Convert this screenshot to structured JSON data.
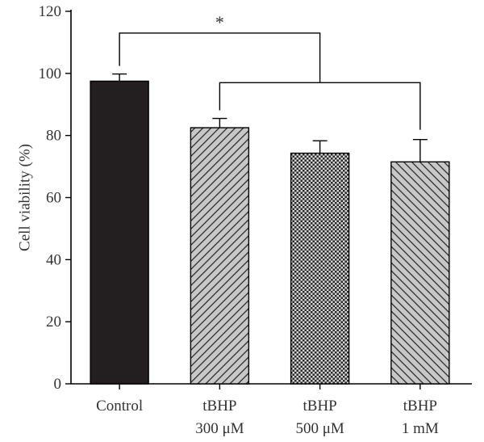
{
  "chart_data": {
    "type": "bar",
    "title": "",
    "xlabel": "",
    "ylabel": "Cell viability (%)",
    "ylim": [
      0,
      120
    ],
    "yticks": [
      0,
      20,
      40,
      60,
      80,
      100,
      120
    ],
    "grid": false,
    "categories": [
      {
        "line1": "Control",
        "line2": ""
      },
      {
        "line1": "tBHP",
        "line2": "300 μM"
      },
      {
        "line1": "tBHP",
        "line2": "500 μM"
      },
      {
        "line1": "tBHP",
        "line2": "1 mM"
      }
    ],
    "values": [
      97.5,
      82.5,
      74.3,
      71.5
    ],
    "errors": [
      2.3,
      3.0,
      4.0,
      7.2
    ],
    "bar_fills": [
      {
        "pattern": "solid",
        "color": "#231f20"
      },
      {
        "pattern": "diagonal-right",
        "color": "#c7c7c7"
      },
      {
        "pattern": "checker",
        "color": "#c7c7c7"
      },
      {
        "pattern": "diagonal-left",
        "color": "#c7c7c7"
      }
    ],
    "significance": {
      "label": "*",
      "group_a": [
        0
      ],
      "group_b": [
        1,
        2,
        3
      ],
      "bracket_a_y": 113,
      "bracket_b_y": 97
    }
  }
}
